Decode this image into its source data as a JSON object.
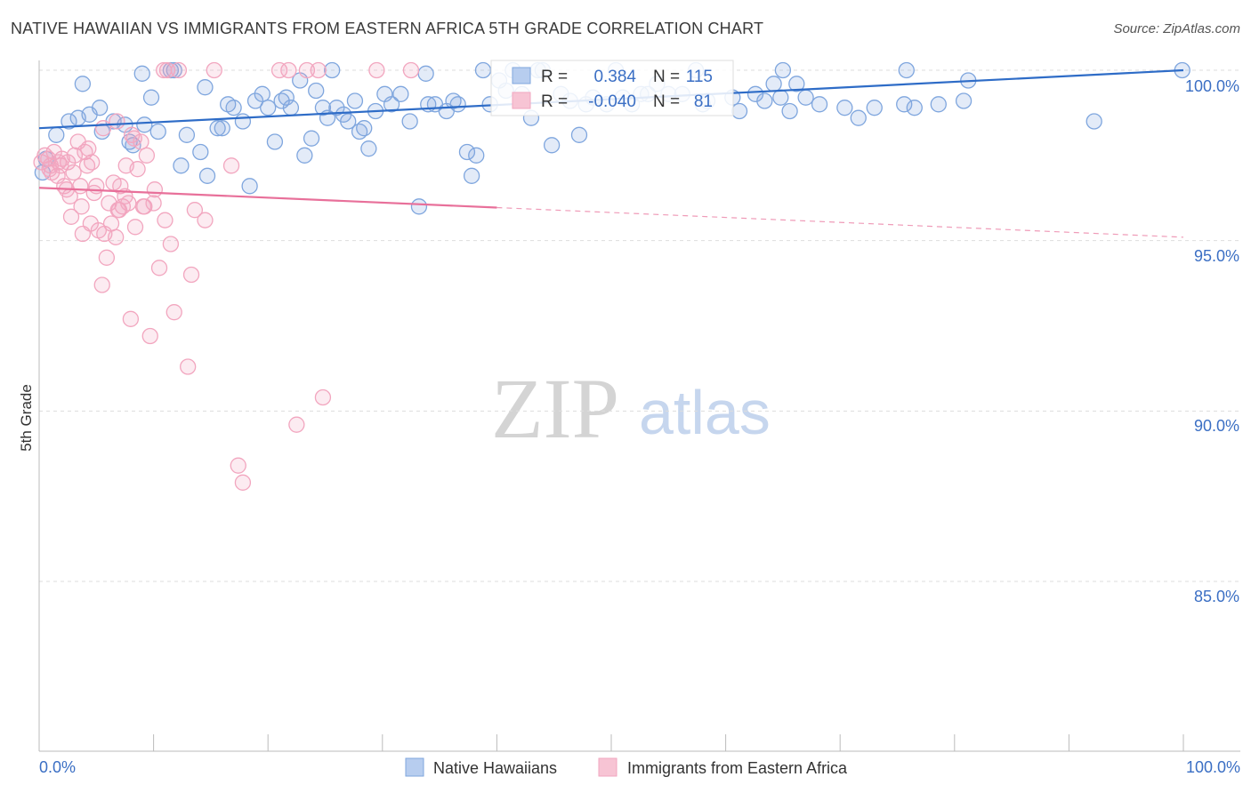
{
  "title": "NATIVE HAWAIIAN VS IMMIGRANTS FROM EASTERN AFRICA 5TH GRADE CORRELATION CHART",
  "source": "Source: ZipAtlas.com",
  "watermark": {
    "zip": "ZIP",
    "atlas": "atlas"
  },
  "chart_data": {
    "type": "scatter",
    "title": "NATIVE HAWAIIAN VS IMMIGRANTS FROM EASTERN AFRICA 5TH GRADE CORRELATION CHART",
    "xlabel": "",
    "ylabel": "5th Grade",
    "xlim": [
      0,
      100
    ],
    "ylim": [
      80,
      100.8
    ],
    "x_tick_labels": [
      "0.0%",
      "100.0%"
    ],
    "y_ticks": [
      85,
      90,
      95,
      100
    ],
    "y_tick_labels": [
      "85.0%",
      "90.0%",
      "95.0%",
      "100.0%"
    ],
    "grid": true,
    "legend_position": "bottom",
    "stats_box": {
      "r_label": "R =",
      "n_label": "N =",
      "rows": [
        {
          "r": "0.384",
          "n": "115"
        },
        {
          "r": "-0.040",
          "n": "81"
        }
      ]
    },
    "series": [
      {
        "name": "Native Hawaiians",
        "color": "#7fa6de",
        "line_color": "#2e6cc7",
        "trend": {
          "x": [
            0,
            100
          ],
          "y": [
            98.3,
            100.0
          ],
          "dashed_from": null
        },
        "points": [
          [
            0.3,
            97.0
          ],
          [
            0.6,
            97.4
          ],
          [
            1.5,
            98.1
          ],
          [
            2.6,
            98.5
          ],
          [
            3.4,
            98.6
          ],
          [
            3.8,
            99.6
          ],
          [
            4.4,
            98.7
          ],
          [
            5.3,
            98.9
          ],
          [
            5.5,
            98.2
          ],
          [
            6.5,
            98.5
          ],
          [
            7.5,
            98.4
          ],
          [
            7.9,
            97.9
          ],
          [
            8.2,
            97.8
          ],
          [
            9.0,
            99.9
          ],
          [
            9.2,
            98.4
          ],
          [
            9.8,
            99.2
          ],
          [
            10.4,
            98.2
          ],
          [
            11.5,
            100.0
          ],
          [
            11.8,
            100.0
          ],
          [
            12.4,
            97.2
          ],
          [
            12.9,
            98.1
          ],
          [
            14.1,
            97.6
          ],
          [
            14.5,
            99.5
          ],
          [
            14.7,
            96.9
          ],
          [
            15.6,
            98.3
          ],
          [
            16.0,
            98.3
          ],
          [
            16.5,
            99.0
          ],
          [
            17.0,
            98.9
          ],
          [
            17.8,
            98.5
          ],
          [
            18.4,
            96.6
          ],
          [
            18.9,
            99.1
          ],
          [
            19.5,
            99.3
          ],
          [
            20.0,
            98.9
          ],
          [
            20.6,
            97.9
          ],
          [
            21.2,
            99.1
          ],
          [
            21.6,
            99.2
          ],
          [
            22.0,
            98.9
          ],
          [
            22.8,
            99.7
          ],
          [
            23.2,
            97.5
          ],
          [
            23.8,
            98.0
          ],
          [
            24.2,
            99.4
          ],
          [
            24.8,
            98.9
          ],
          [
            25.2,
            98.6
          ],
          [
            25.6,
            100.0
          ],
          [
            26.0,
            98.9
          ],
          [
            26.6,
            98.7
          ],
          [
            27.0,
            98.5
          ],
          [
            27.6,
            99.1
          ],
          [
            28.0,
            98.2
          ],
          [
            28.4,
            98.3
          ],
          [
            28.8,
            97.7
          ],
          [
            29.4,
            98.8
          ],
          [
            30.2,
            99.3
          ],
          [
            30.8,
            99.0
          ],
          [
            31.6,
            99.3
          ],
          [
            32.4,
            98.5
          ],
          [
            33.2,
            96.0
          ],
          [
            33.8,
            99.9
          ],
          [
            34.0,
            99.0
          ],
          [
            34.6,
            99.0
          ],
          [
            35.6,
            98.8
          ],
          [
            36.2,
            99.1
          ],
          [
            36.6,
            99.0
          ],
          [
            37.4,
            97.6
          ],
          [
            37.8,
            96.9
          ],
          [
            38.2,
            97.5
          ],
          [
            38.8,
            100.0
          ],
          [
            39.4,
            99.0
          ],
          [
            40.2,
            99.7
          ],
          [
            40.8,
            99.4
          ],
          [
            41.4,
            100.0
          ],
          [
            42.2,
            99.3
          ],
          [
            43.0,
            98.6
          ],
          [
            43.6,
            100.0
          ],
          [
            44.0,
            100.0
          ],
          [
            44.8,
            97.8
          ],
          [
            45.6,
            99.3
          ],
          [
            46.4,
            99.1
          ],
          [
            47.2,
            98.1
          ],
          [
            47.8,
            99.0
          ],
          [
            48.4,
            99.2
          ],
          [
            49.6,
            99.0
          ],
          [
            50.4,
            100.0
          ],
          [
            51.0,
            99.2
          ],
          [
            51.8,
            99.0
          ],
          [
            52.6,
            99.3
          ],
          [
            53.2,
            99.3
          ],
          [
            54.0,
            99.6
          ],
          [
            55.0,
            99.3
          ],
          [
            56.2,
            99.3
          ],
          [
            57.4,
            100.0
          ],
          [
            58.0,
            99.0
          ],
          [
            58.4,
            99.1
          ],
          [
            60.6,
            99.2
          ],
          [
            61.2,
            98.8
          ],
          [
            62.6,
            99.3
          ],
          [
            63.4,
            99.1
          ],
          [
            64.2,
            99.6
          ],
          [
            64.8,
            99.2
          ],
          [
            65.0,
            100.0
          ],
          [
            65.6,
            98.8
          ],
          [
            66.2,
            99.6
          ],
          [
            67.0,
            99.2
          ],
          [
            68.2,
            99.0
          ],
          [
            70.4,
            98.9
          ],
          [
            71.6,
            98.6
          ],
          [
            73.0,
            98.9
          ],
          [
            75.6,
            99.0
          ],
          [
            75.8,
            100.0
          ],
          [
            76.5,
            98.9
          ],
          [
            78.6,
            99.0
          ],
          [
            80.8,
            99.1
          ],
          [
            81.2,
            99.7
          ],
          [
            92.2,
            98.5
          ],
          [
            99.9,
            100.0
          ]
        ]
      },
      {
        "name": "Immigrants from Eastern Africa",
        "color": "#f2a6bf",
        "line_color": "#e8709a",
        "trend": {
          "x": [
            0,
            100
          ],
          "y": [
            96.55,
            95.1
          ],
          "dashed_from": 40
        },
        "points": [
          [
            0.2,
            97.3
          ],
          [
            0.5,
            97.5
          ],
          [
            0.8,
            97.4
          ],
          [
            1.0,
            97.2
          ],
          [
            1.3,
            97.6
          ],
          [
            1.6,
            96.9
          ],
          [
            1.9,
            97.2
          ],
          [
            2.2,
            96.6
          ],
          [
            2.5,
            97.3
          ],
          [
            2.7,
            96.3
          ],
          [
            2.8,
            95.7
          ],
          [
            3.1,
            97.5
          ],
          [
            3.4,
            97.9
          ],
          [
            3.6,
            96.6
          ],
          [
            3.7,
            96.0
          ],
          [
            3.8,
            95.2
          ],
          [
            4.0,
            97.6
          ],
          [
            4.2,
            97.2
          ],
          [
            4.3,
            97.7
          ],
          [
            4.5,
            95.5
          ],
          [
            4.8,
            96.4
          ],
          [
            5.0,
            96.6
          ],
          [
            5.2,
            95.3
          ],
          [
            5.5,
            93.7
          ],
          [
            5.7,
            95.2
          ],
          [
            5.9,
            94.5
          ],
          [
            6.1,
            96.1
          ],
          [
            6.3,
            95.5
          ],
          [
            6.5,
            96.7
          ],
          [
            6.7,
            95.1
          ],
          [
            6.9,
            95.9
          ],
          [
            7.1,
            96.6
          ],
          [
            7.3,
            96.0
          ],
          [
            7.5,
            96.3
          ],
          [
            7.6,
            97.2
          ],
          [
            7.8,
            96.1
          ],
          [
            8.0,
            92.7
          ],
          [
            8.1,
            98.1
          ],
          [
            8.3,
            98.0
          ],
          [
            8.4,
            95.4
          ],
          [
            8.6,
            97.1
          ],
          [
            8.9,
            97.9
          ],
          [
            9.1,
            96.0
          ],
          [
            9.4,
            97.5
          ],
          [
            9.7,
            92.2
          ],
          [
            10.1,
            96.5
          ],
          [
            10.5,
            94.2
          ],
          [
            10.9,
            100.0
          ],
          [
            11.2,
            100.0
          ],
          [
            11.5,
            94.9
          ],
          [
            11.8,
            92.9
          ],
          [
            12.2,
            100.0
          ],
          [
            13.0,
            91.3
          ],
          [
            13.3,
            94.0
          ],
          [
            13.6,
            95.9
          ],
          [
            14.5,
            95.6
          ],
          [
            15.3,
            100.0
          ],
          [
            16.8,
            97.2
          ],
          [
            17.4,
            88.4
          ],
          [
            17.8,
            87.9
          ],
          [
            21.0,
            100.0
          ],
          [
            21.8,
            100.0
          ],
          [
            22.5,
            89.6
          ],
          [
            23.4,
            100.0
          ],
          [
            24.4,
            100.0
          ],
          [
            24.8,
            90.4
          ],
          [
            29.5,
            100.0
          ],
          [
            32.5,
            100.0
          ],
          [
            6.8,
            98.5
          ],
          [
            5.6,
            98.3
          ],
          [
            2.0,
            97.4
          ],
          [
            1.1,
            97.0
          ],
          [
            0.9,
            97.1
          ],
          [
            3.0,
            97.0
          ],
          [
            4.6,
            97.3
          ],
          [
            7.0,
            95.9
          ],
          [
            9.2,
            96.0
          ],
          [
            10.0,
            96.1
          ],
          [
            11.0,
            95.6
          ],
          [
            2.4,
            96.5
          ],
          [
            1.7,
            97.3
          ]
        ]
      }
    ]
  }
}
